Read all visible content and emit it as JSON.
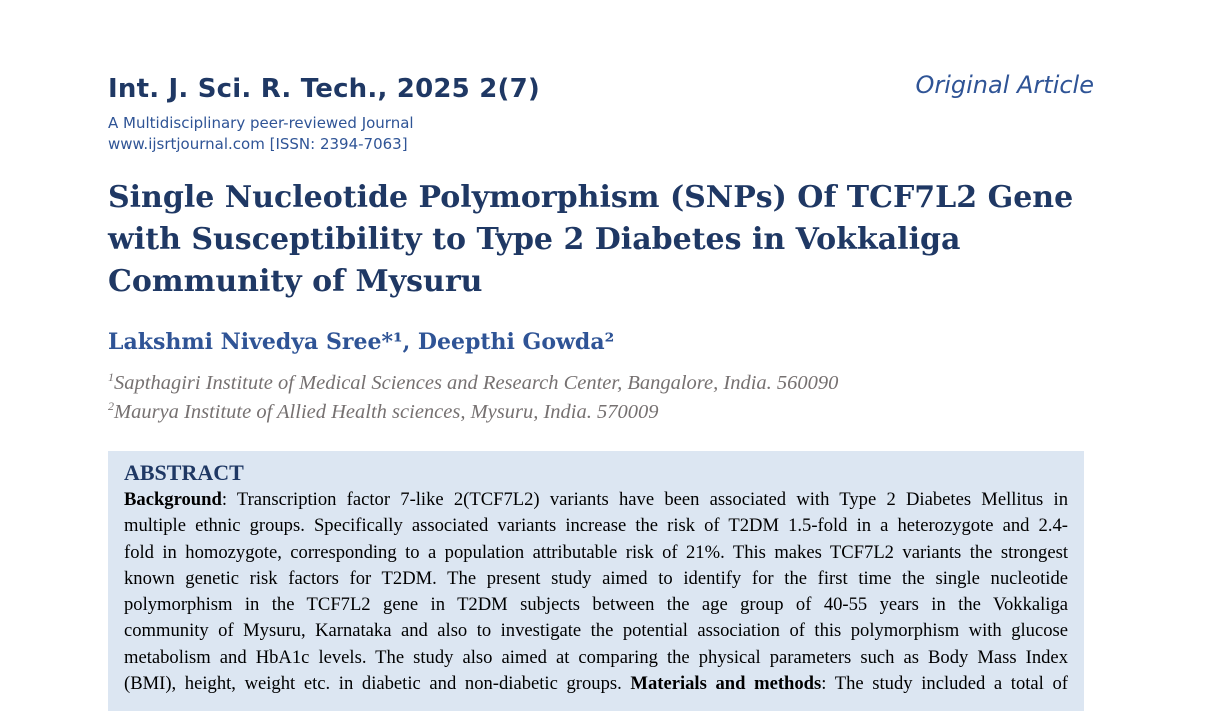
{
  "header": {
    "journal_citation": "Int. J. Sci. R. Tech., 2025 2(7)",
    "journal_subtitle": "A Multidisciplinary peer-reviewed Journal",
    "journal_url_issn": "www.ijsrtjournal.com [ISSN: 2394-7063]",
    "article_type": "Original Article"
  },
  "paper": {
    "title_lines": [
      "Single Nucleotide Polymorphism (SNPs) Of TCF7L2 Gene",
      "with Susceptibility to Type 2 Diabetes in Vokkaliga",
      "Community of Mysuru"
    ],
    "authors": "Lakshmi Nivedya Sree*¹, Deepthi Gowda²",
    "affiliations": [
      {
        "mark": "1",
        "text": "Sapthagiri Institute of Medical Sciences and Research Center, Bangalore, India. 560090"
      },
      {
        "mark": "2",
        "text": "Maurya Institute of Allied Health sciences, Mysuru, India. 570009"
      }
    ]
  },
  "abstract": {
    "heading": "ABSTRACT",
    "background_label": "Background",
    "lines": [
      ": Transcription factor 7-like 2(TCF7L2) variants have been associated with Type 2 Diabetes Mellitus in",
      "multiple ethnic groups. Specifically associated variants increase the risk of T2DM 1.5-fold in a heterozygote and 2.4-",
      "fold in homozygote, corresponding to a population attributable risk of 21%. This makes TCF7L2 variants the strongest",
      "known genetic risk factors for T2DM. The present study aimed to identify for the first time the single nucleotide",
      "polymorphism in the TCF7L2 gene in T2DM subjects between the age group of 40-55 years in the Vokkaliga",
      "community of Mysuru, Karnataka and also to investigate the potential association of this polymorphism with glucose",
      "metabolism and HbA1c levels. The study also aimed at comparing the physical parameters such as Body Mass Index",
      "(BMI), height, weight etc. in diabetic and non-diabetic groups. "
    ],
    "methods_label": "Materials and methods",
    "methods_text": ": The study included a total of"
  }
}
